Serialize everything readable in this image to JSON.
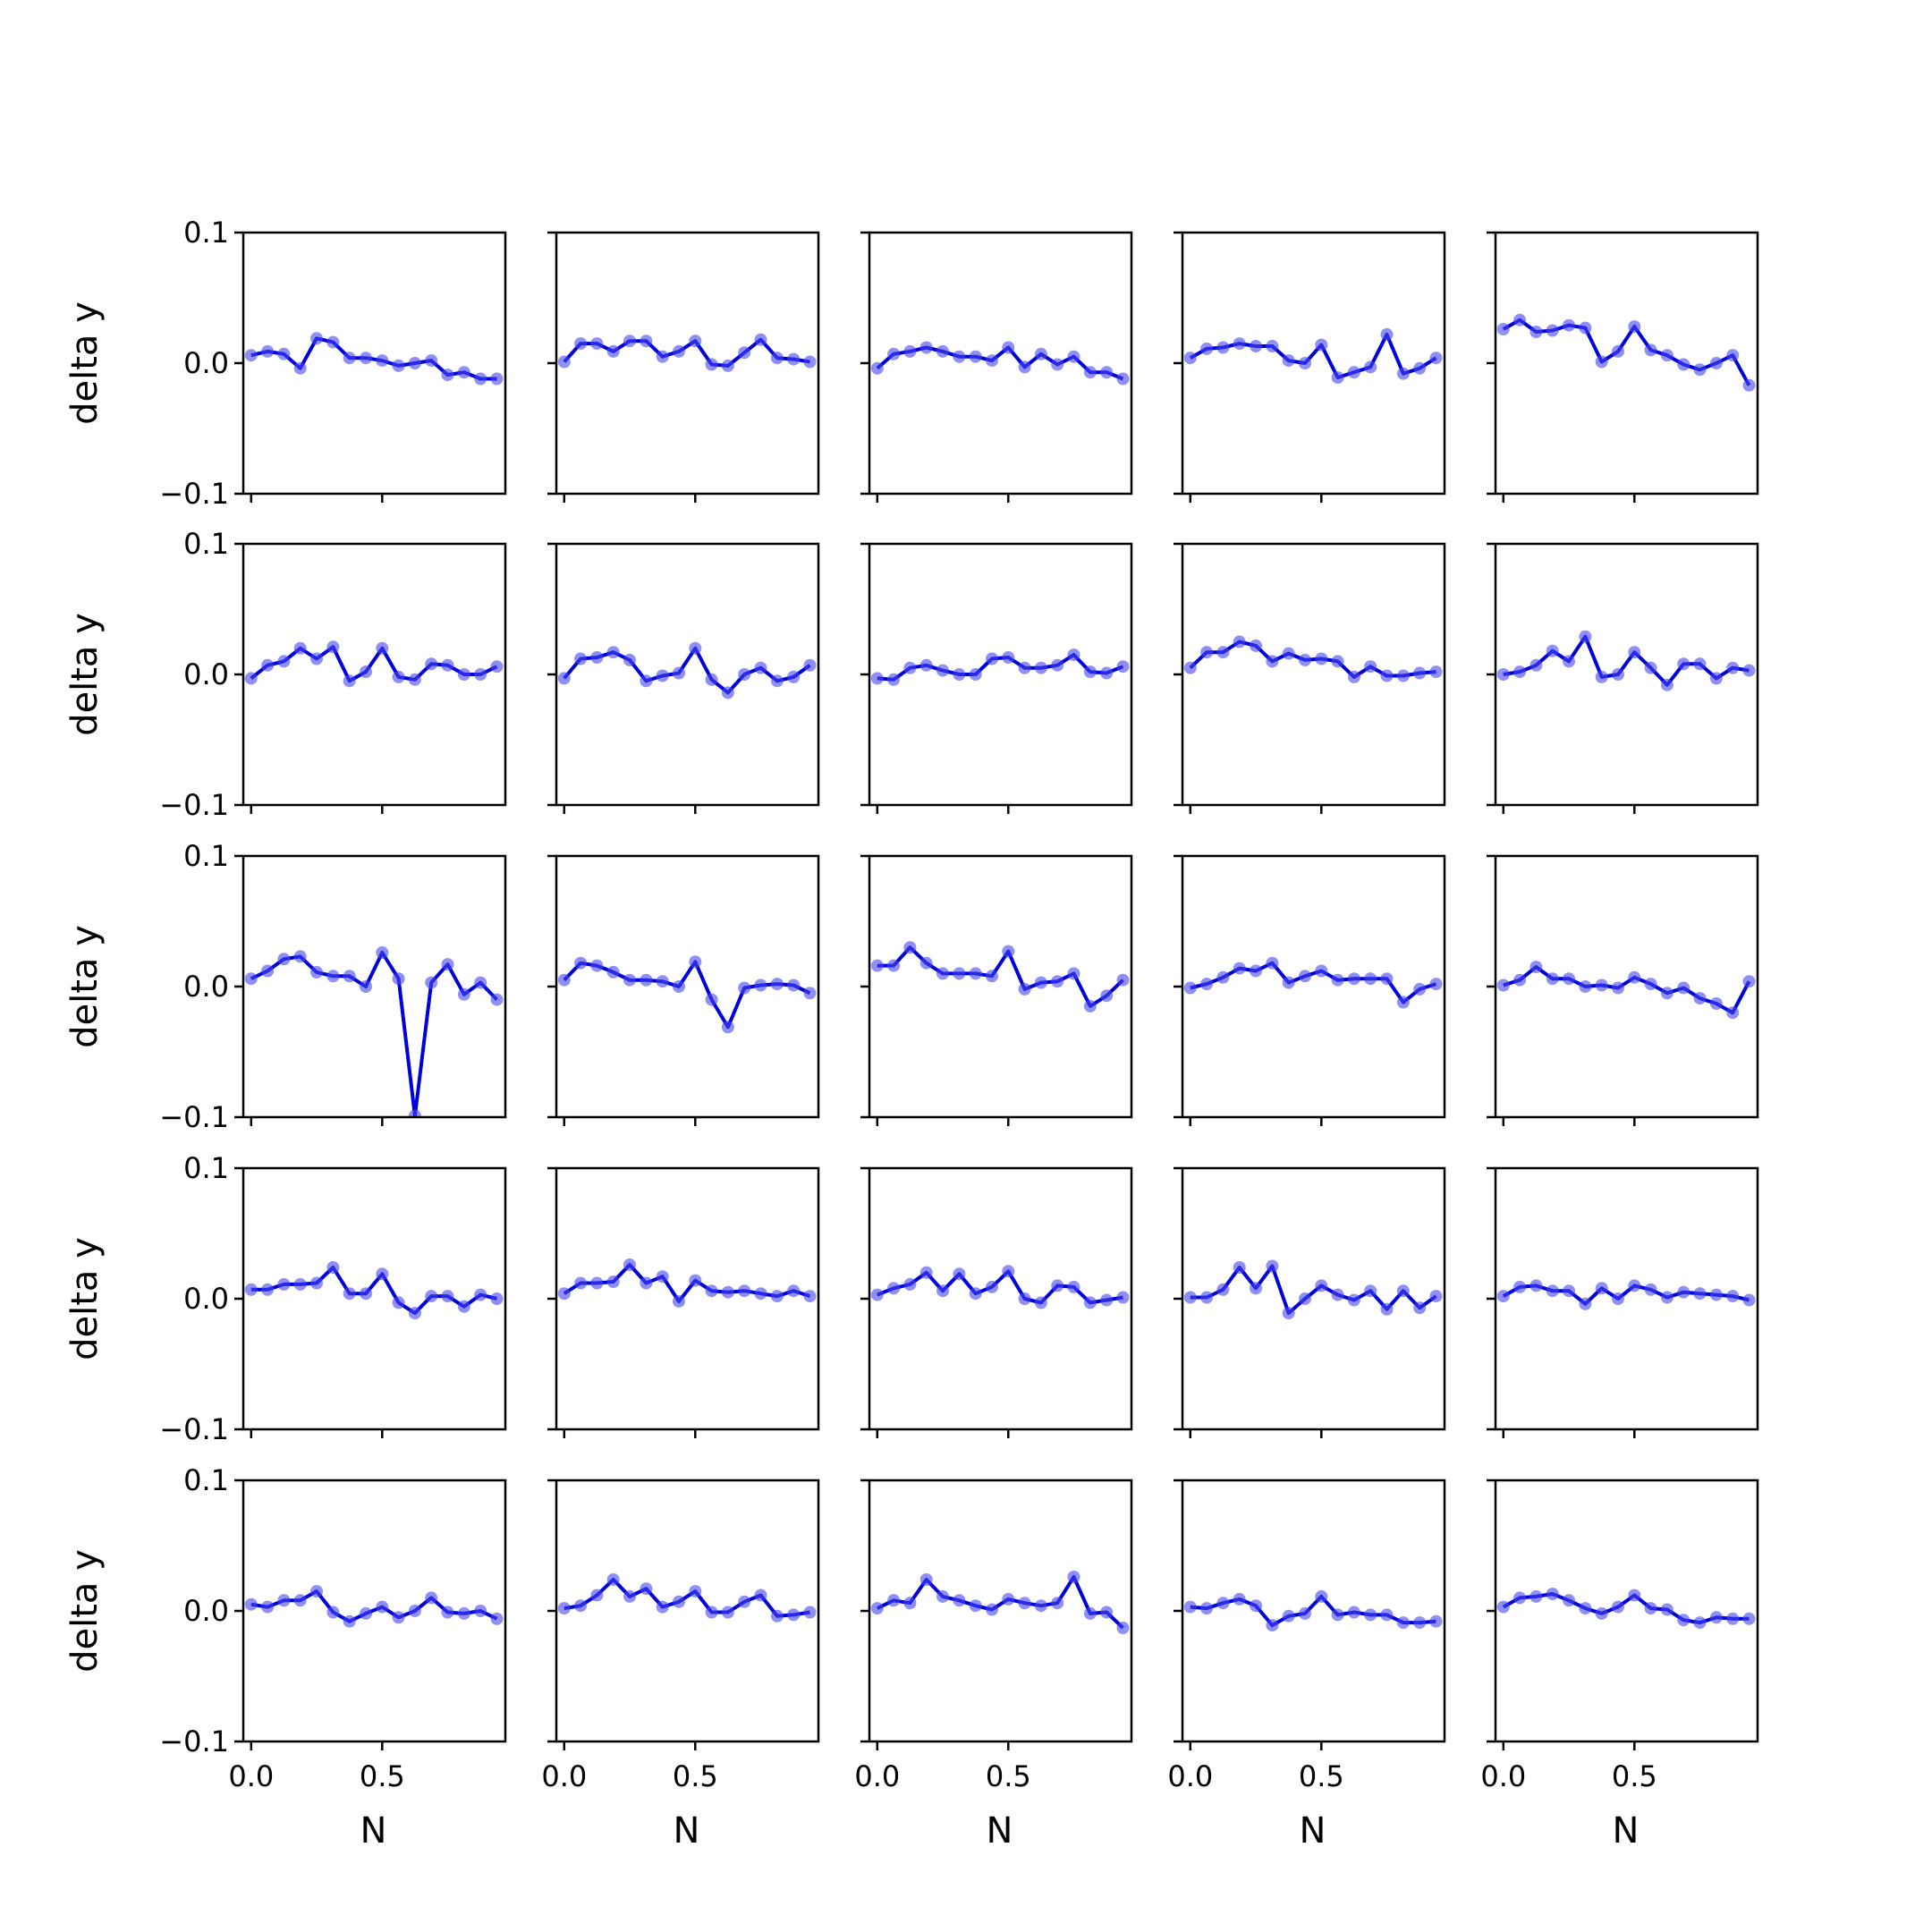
{
  "chart_data": {
    "type": "line",
    "layout": "5x5 grid of small multiples",
    "shared_x": true,
    "shared_y": true,
    "xlabel": "N",
    "ylabel": "delta y",
    "ylim": [
      -0.1,
      0.1
    ],
    "yticks": [
      "0.1",
      "0.0",
      "−0.1"
    ],
    "ytick_values": [
      0.1,
      0.0,
      -0.1
    ],
    "xlim": [
      -0.03,
      0.97
    ],
    "xticks": [
      "0.0",
      "0.5"
    ],
    "xtick_values": [
      0.0,
      0.5
    ],
    "x": [
      0.0,
      0.0625,
      0.125,
      0.1875,
      0.25,
      0.3125,
      0.375,
      0.4375,
      0.5,
      0.5625,
      0.625,
      0.6875,
      0.75,
      0.8125,
      0.875,
      0.9375
    ],
    "line_color": "#0000dd",
    "marker_color": "#4444ee",
    "grid": false,
    "panels": [
      {
        "row": 0,
        "col": 0,
        "values": [
          0.006,
          0.009,
          0.007,
          -0.004,
          0.019,
          0.016,
          0.004,
          0.004,
          0.002,
          -0.002,
          0.0,
          0.002,
          -0.009,
          -0.007,
          -0.012,
          -0.012
        ]
      },
      {
        "row": 0,
        "col": 1,
        "values": [
          0.001,
          0.015,
          0.015,
          0.009,
          0.017,
          0.017,
          0.005,
          0.009,
          0.017,
          -0.001,
          -0.002,
          0.008,
          0.018,
          0.004,
          0.003,
          0.001
        ]
      },
      {
        "row": 0,
        "col": 2,
        "values": [
          -0.004,
          0.007,
          0.009,
          0.012,
          0.009,
          0.005,
          0.005,
          0.002,
          0.012,
          -0.003,
          0.007,
          -0.001,
          0.005,
          -0.007,
          -0.007,
          -0.012
        ]
      },
      {
        "row": 0,
        "col": 3,
        "values": [
          0.004,
          0.011,
          0.012,
          0.015,
          0.013,
          0.013,
          0.002,
          0.0,
          0.014,
          -0.011,
          -0.007,
          -0.003,
          0.022,
          -0.008,
          -0.004,
          0.004
        ]
      },
      {
        "row": 0,
        "col": 4,
        "values": [
          0.026,
          0.033,
          0.024,
          0.025,
          0.029,
          0.027,
          0.001,
          0.009,
          0.028,
          0.01,
          0.006,
          -0.001,
          -0.005,
          0.0,
          0.006,
          -0.017
        ]
      },
      {
        "row": 1,
        "col": 0,
        "values": [
          -0.003,
          0.007,
          0.01,
          0.02,
          0.012,
          0.021,
          -0.005,
          0.002,
          0.02,
          -0.002,
          -0.004,
          0.008,
          0.007,
          0.0,
          0.0,
          0.006
        ]
      },
      {
        "row": 1,
        "col": 1,
        "values": [
          -0.003,
          0.012,
          0.013,
          0.017,
          0.011,
          -0.005,
          -0.001,
          0.001,
          0.02,
          -0.004,
          -0.014,
          0.0,
          0.005,
          -0.005,
          -0.002,
          0.007
        ]
      },
      {
        "row": 1,
        "col": 2,
        "values": [
          -0.003,
          -0.004,
          0.005,
          0.007,
          0.003,
          0.0,
          0.0,
          0.012,
          0.013,
          0.005,
          0.005,
          0.007,
          0.015,
          0.002,
          0.001,
          0.006
        ]
      },
      {
        "row": 1,
        "col": 3,
        "values": [
          0.005,
          0.017,
          0.017,
          0.025,
          0.022,
          0.01,
          0.016,
          0.011,
          0.012,
          0.01,
          -0.002,
          0.006,
          -0.001,
          -0.001,
          0.001,
          0.002
        ]
      },
      {
        "row": 1,
        "col": 4,
        "values": [
          0.0,
          0.002,
          0.007,
          0.018,
          0.01,
          0.029,
          -0.002,
          0.0,
          0.017,
          0.005,
          -0.008,
          0.008,
          0.008,
          -0.003,
          0.005,
          0.003
        ]
      },
      {
        "row": 2,
        "col": 0,
        "values": [
          0.006,
          0.012,
          0.021,
          0.023,
          0.011,
          0.008,
          0.008,
          0.0,
          0.026,
          0.006,
          -0.099,
          0.003,
          0.017,
          -0.006,
          0.003,
          -0.01
        ]
      },
      {
        "row": 2,
        "col": 1,
        "values": [
          0.005,
          0.018,
          0.016,
          0.011,
          0.005,
          0.005,
          0.004,
          0.0,
          0.019,
          -0.01,
          -0.031,
          -0.001,
          0.001,
          0.002,
          0.001,
          -0.005
        ]
      },
      {
        "row": 2,
        "col": 2,
        "values": [
          0.016,
          0.016,
          0.03,
          0.018,
          0.01,
          0.01,
          0.01,
          0.008,
          0.027,
          -0.002,
          0.003,
          0.004,
          0.01,
          -0.015,
          -0.007,
          0.005
        ]
      },
      {
        "row": 2,
        "col": 3,
        "values": [
          -0.001,
          0.002,
          0.007,
          0.014,
          0.012,
          0.018,
          0.003,
          0.008,
          0.012,
          0.005,
          0.006,
          0.006,
          0.006,
          -0.012,
          -0.002,
          0.002
        ]
      },
      {
        "row": 2,
        "col": 4,
        "values": [
          0.001,
          0.005,
          0.015,
          0.006,
          0.006,
          0.0,
          0.001,
          -0.001,
          0.007,
          0.002,
          -0.005,
          -0.001,
          -0.009,
          -0.013,
          -0.02,
          0.004
        ]
      },
      {
        "row": 3,
        "col": 0,
        "values": [
          0.007,
          0.007,
          0.011,
          0.011,
          0.012,
          0.024,
          0.004,
          0.004,
          0.019,
          -0.003,
          -0.011,
          0.002,
          0.002,
          -0.006,
          0.003,
          0.0
        ]
      },
      {
        "row": 3,
        "col": 1,
        "values": [
          0.004,
          0.012,
          0.012,
          0.013,
          0.026,
          0.012,
          0.017,
          -0.002,
          0.014,
          0.006,
          0.005,
          0.006,
          0.004,
          0.002,
          0.006,
          0.002
        ]
      },
      {
        "row": 3,
        "col": 2,
        "values": [
          0.003,
          0.008,
          0.011,
          0.02,
          0.006,
          0.019,
          0.004,
          0.009,
          0.021,
          0.0,
          -0.003,
          0.01,
          0.009,
          -0.003,
          -0.001,
          0.001
        ]
      },
      {
        "row": 3,
        "col": 3,
        "values": [
          0.001,
          0.001,
          0.007,
          0.024,
          0.008,
          0.025,
          -0.011,
          0.0,
          0.01,
          0.003,
          -0.001,
          0.006,
          -0.008,
          0.006,
          -0.007,
          0.002
        ]
      },
      {
        "row": 3,
        "col": 4,
        "values": [
          0.002,
          0.009,
          0.01,
          0.006,
          0.006,
          -0.004,
          0.008,
          0.0,
          0.01,
          0.007,
          0.001,
          0.005,
          0.004,
          0.003,
          0.002,
          -0.001
        ]
      },
      {
        "row": 4,
        "col": 0,
        "values": [
          0.005,
          0.003,
          0.008,
          0.008,
          0.015,
          -0.001,
          -0.008,
          -0.002,
          0.003,
          -0.005,
          0.0,
          0.01,
          -0.001,
          -0.002,
          0.0,
          -0.006
        ]
      },
      {
        "row": 4,
        "col": 1,
        "values": [
          0.002,
          0.004,
          0.012,
          0.024,
          0.011,
          0.017,
          0.003,
          0.007,
          0.015,
          -0.001,
          -0.001,
          0.007,
          0.012,
          -0.004,
          -0.003,
          -0.001
        ]
      },
      {
        "row": 4,
        "col": 2,
        "values": [
          0.002,
          0.008,
          0.006,
          0.024,
          0.011,
          0.008,
          0.004,
          0.001,
          0.009,
          0.006,
          0.004,
          0.006,
          0.026,
          -0.002,
          -0.001,
          -0.013
        ]
      },
      {
        "row": 4,
        "col": 3,
        "values": [
          0.003,
          0.002,
          0.006,
          0.009,
          0.004,
          -0.011,
          -0.004,
          -0.002,
          0.011,
          -0.003,
          -0.001,
          -0.003,
          -0.003,
          -0.009,
          -0.009,
          -0.008
        ]
      },
      {
        "row": 4,
        "col": 4,
        "values": [
          0.003,
          0.01,
          0.011,
          0.013,
          0.008,
          0.002,
          -0.002,
          0.003,
          0.012,
          0.002,
          0.001,
          -0.007,
          -0.009,
          -0.005,
          -0.006,
          -0.006
        ]
      }
    ]
  }
}
